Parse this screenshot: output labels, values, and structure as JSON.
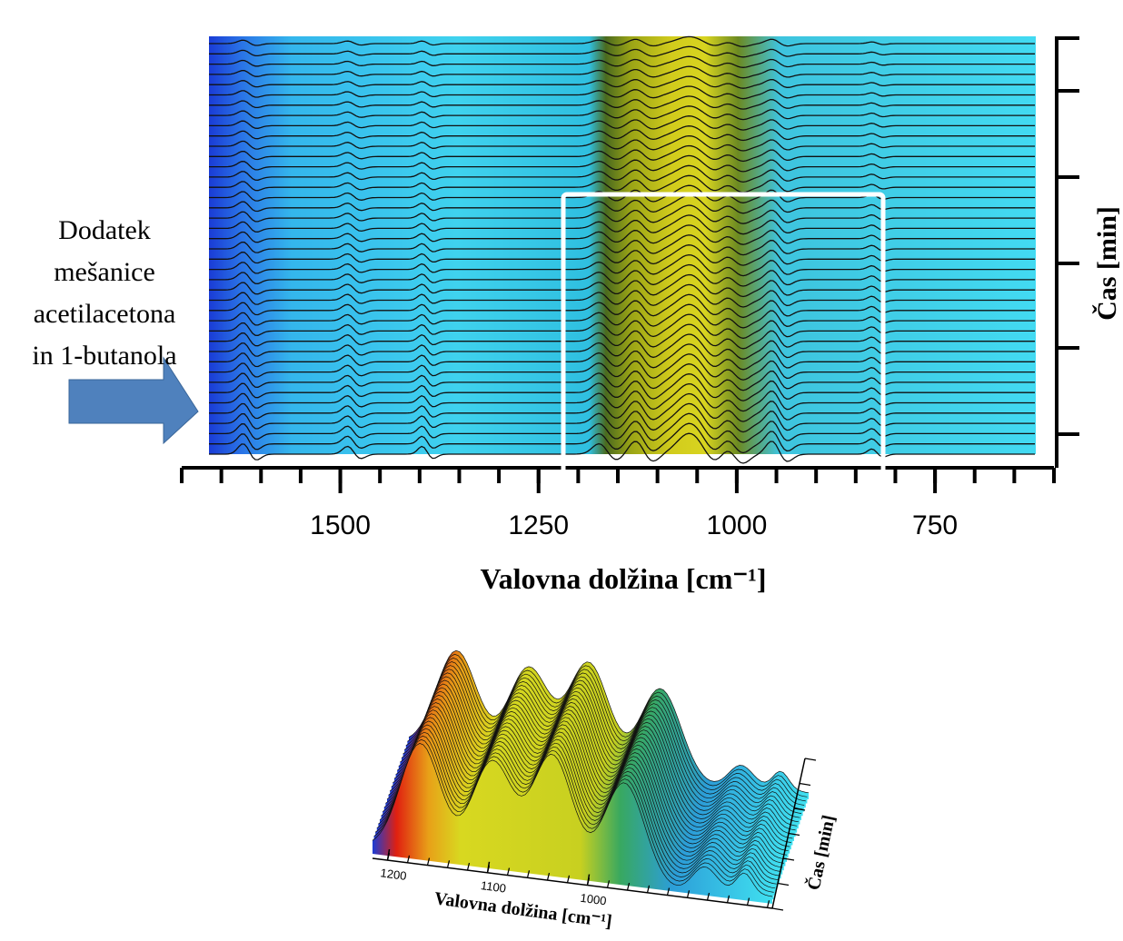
{
  "chart_data": [
    {
      "type": "surface3d",
      "annotation": [
        "Dodatek",
        "mešanice",
        "acetilacetona",
        "in 1-butanola"
      ],
      "x_label": "Valovna dolžina [cm⁻¹]",
      "y_label": "Čas [min]",
      "xlim": [
        1700,
        600
      ],
      "xticks": [
        1500,
        1250,
        1000,
        750
      ]
    },
    {
      "type": "surface3d",
      "x_label": "Valovna dolžina [cm⁻¹]",
      "y_label": "Čas [min]",
      "xlim": [
        1215,
        815
      ],
      "xticks": [
        1200,
        1100,
        1000
      ]
    }
  ]
}
